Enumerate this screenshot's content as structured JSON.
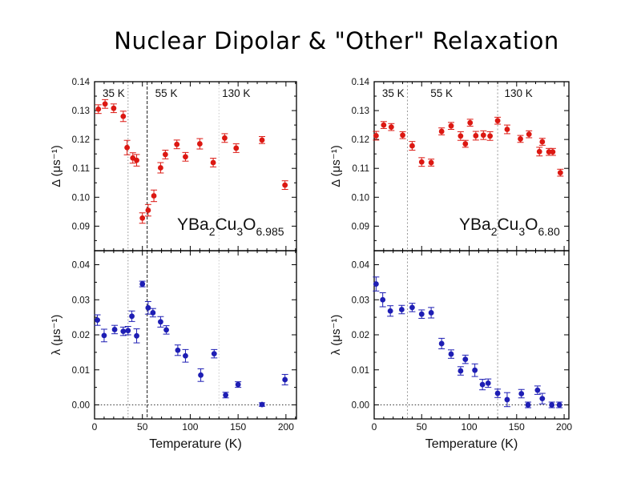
{
  "slide": {
    "title": "Nuclear Dipolar & \"Other\" Relaxation",
    "background": "#ffffff"
  },
  "colors": {
    "delta_marker": "#dc1812",
    "lambda_marker": "#1e1eb4",
    "axis": "#000000",
    "line35K": "#8c8c8c",
    "line55K": "#1a1a1a",
    "line130K": "#c8c8c8",
    "zero_line": "#333333"
  },
  "chart_data": [
    {
      "type": "scatter",
      "id": "left",
      "compound": "YBa2Cu3O6.985",
      "formula": [
        {
          "text": "YBa",
          "sub": false
        },
        {
          "text": "2",
          "sub": true
        },
        {
          "text": "Cu",
          "sub": false
        },
        {
          "text": "3",
          "sub": true
        },
        {
          "text": "O",
          "sub": false
        },
        {
          "text": "6.985",
          "sub": true
        }
      ],
      "xlabel": "Temperature (K)",
      "xlim": [
        0,
        211
      ],
      "x_major_ticks": [
        0,
        50,
        100,
        150,
        200
      ],
      "x_minor_step": 10,
      "annotations": [
        {
          "text": "35 K",
          "x": 20
        },
        {
          "text": "55 K",
          "x": 75
        },
        {
          "text": "130 K",
          "x": 148
        }
      ],
      "ref_lines": [
        {
          "x": 35,
          "color": "#8c8c8c",
          "dash": "1.5,2.4"
        },
        {
          "x": 55,
          "color": "#1a1a1a",
          "dash": "4,2"
        },
        {
          "x": 130,
          "color": "#c8c8c8",
          "dash": "1.5,2.4"
        }
      ],
      "panels": {
        "delta": {
          "ylabel": "Δ (μs⁻¹)",
          "ylim": [
            0.0815,
            0.14
          ],
          "y_major_ticks": [
            0.09,
            0.1,
            0.11,
            0.12,
            0.13,
            0.14
          ],
          "y_minor_step": 0.005,
          "tick_decimals": 2,
          "zero_line": false,
          "marker_color": "#dc1812",
          "x": [
            4,
            11,
            20,
            30,
            34,
            40,
            44,
            50,
            56,
            62,
            69,
            74,
            86,
            95,
            110,
            124,
            136,
            148,
            175,
            199
          ],
          "y": [
            0.1305,
            0.1323,
            0.1308,
            0.128,
            0.1172,
            0.1136,
            0.1128,
            0.0928,
            0.0955,
            0.1005,
            0.1102,
            0.1148,
            0.1183,
            0.114,
            0.1185,
            0.112,
            0.1205,
            0.117,
            0.1198,
            0.1042
          ],
          "err": [
            0.0015,
            0.0015,
            0.0015,
            0.0018,
            0.0025,
            0.0018,
            0.002,
            0.0018,
            0.002,
            0.002,
            0.0018,
            0.0015,
            0.0015,
            0.0015,
            0.0018,
            0.0015,
            0.0015,
            0.0015,
            0.0012,
            0.0015
          ]
        },
        "lambda": {
          "ylabel": "λ (μs⁻¹)",
          "ylim": [
            -0.004,
            0.044
          ],
          "y_major_ticks": [
            0.0,
            0.01,
            0.02,
            0.03,
            0.04
          ],
          "y_minor_step": 0.005,
          "tick_decimals": 2,
          "zero_line": true,
          "marker_color": "#1e1eb4",
          "x": [
            3,
            10,
            21,
            30,
            35,
            39,
            44,
            50,
            56,
            61,
            69,
            75,
            87,
            95,
            111,
            125,
            137,
            150,
            175,
            199
          ],
          "y": [
            0.0242,
            0.0198,
            0.0215,
            0.021,
            0.0212,
            0.0253,
            0.0197,
            0.0345,
            0.0277,
            0.0263,
            0.0237,
            0.0214,
            0.0156,
            0.014,
            0.0085,
            0.0146,
            0.0028,
            0.0058,
            0.0001,
            0.0072
          ],
          "err": [
            0.0015,
            0.0018,
            0.0012,
            0.0012,
            0.0012,
            0.0015,
            0.002,
            0.0008,
            0.0018,
            0.0012,
            0.0015,
            0.0012,
            0.0015,
            0.0018,
            0.0018,
            0.0012,
            0.0008,
            0.0008,
            0.0005,
            0.0015
          ]
        }
      }
    },
    {
      "type": "scatter",
      "id": "right",
      "compound": "YBa2Cu3O6.80",
      "formula": [
        {
          "text": "YBa",
          "sub": false
        },
        {
          "text": "2",
          "sub": true
        },
        {
          "text": "Cu",
          "sub": false
        },
        {
          "text": "3",
          "sub": true
        },
        {
          "text": "O",
          "sub": false
        },
        {
          "text": "6.80",
          "sub": true
        }
      ],
      "xlabel": "Temperature (K)",
      "xlim": [
        0,
        205
      ],
      "x_major_ticks": [
        0,
        50,
        100,
        150,
        200
      ],
      "x_minor_step": 10,
      "annotations": [
        {
          "text": "35 K",
          "x": 20
        },
        {
          "text": "55 K",
          "x": 71
        },
        {
          "text": "130 K",
          "x": 152
        }
      ],
      "ref_lines": [
        {
          "x": 35,
          "color": "#999999",
          "dash": "2,2.5"
        },
        {
          "x": 130,
          "color": "#999999",
          "dash": "2,2.5"
        }
      ],
      "panels": {
        "delta": {
          "ylabel": "Δ (μs⁻¹)",
          "ylim": [
            0.0815,
            0.14
          ],
          "y_major_ticks": [
            0.09,
            0.1,
            0.11,
            0.12,
            0.13,
            0.14
          ],
          "y_minor_step": 0.005,
          "tick_decimals": 2,
          "zero_line": false,
          "marker_color": "#dc1812",
          "x": [
            2,
            10,
            18,
            30,
            40,
            50,
            60,
            71,
            81,
            91,
            96,
            101,
            107,
            115,
            122,
            130,
            140,
            154,
            163,
            174,
            177,
            184,
            188,
            196
          ],
          "y": [
            0.1213,
            0.125,
            0.1243,
            0.1215,
            0.1178,
            0.1122,
            0.112,
            0.1228,
            0.1247,
            0.1212,
            0.1185,
            0.1258,
            0.1213,
            0.1215,
            0.1212,
            0.1265,
            0.1235,
            0.1202,
            0.1218,
            0.1158,
            0.1192,
            0.1157,
            0.1157,
            0.1085
          ],
          "err": [
            0.0015,
            0.0012,
            0.0012,
            0.0012,
            0.0015,
            0.0015,
            0.0012,
            0.0012,
            0.0012,
            0.0015,
            0.0012,
            0.0012,
            0.0015,
            0.0015,
            0.0015,
            0.0012,
            0.0015,
            0.0012,
            0.0012,
            0.0015,
            0.0012,
            0.0012,
            0.0012,
            0.0012
          ]
        },
        "lambda": {
          "ylabel": "λ (μs⁻¹)",
          "ylim": [
            -0.004,
            0.044
          ],
          "y_major_ticks": [
            0.0,
            0.01,
            0.02,
            0.03,
            0.04
          ],
          "y_minor_step": 0.005,
          "tick_decimals": 2,
          "zero_line": true,
          "marker_color": "#1e1eb4",
          "x": [
            2,
            9,
            17,
            29,
            40,
            50,
            60,
            71,
            81,
            91,
            96,
            106,
            114,
            120,
            130,
            140,
            155,
            162,
            172,
            177,
            187,
            195
          ],
          "y": [
            0.0345,
            0.03,
            0.0268,
            0.0272,
            0.0278,
            0.0259,
            0.0263,
            0.0175,
            0.0145,
            0.0097,
            0.013,
            0.0099,
            0.0058,
            0.0062,
            0.0033,
            0.0015,
            0.0032,
            0.0,
            0.0042,
            0.0018,
            0.0,
            0.0
          ],
          "err": [
            0.002,
            0.002,
            0.0015,
            0.0012,
            0.0012,
            0.0012,
            0.0015,
            0.0015,
            0.0012,
            0.0012,
            0.0012,
            0.0018,
            0.0015,
            0.0012,
            0.0012,
            0.002,
            0.0012,
            0.0008,
            0.0012,
            0.0015,
            0.0008,
            0.0008
          ]
        }
      }
    }
  ]
}
